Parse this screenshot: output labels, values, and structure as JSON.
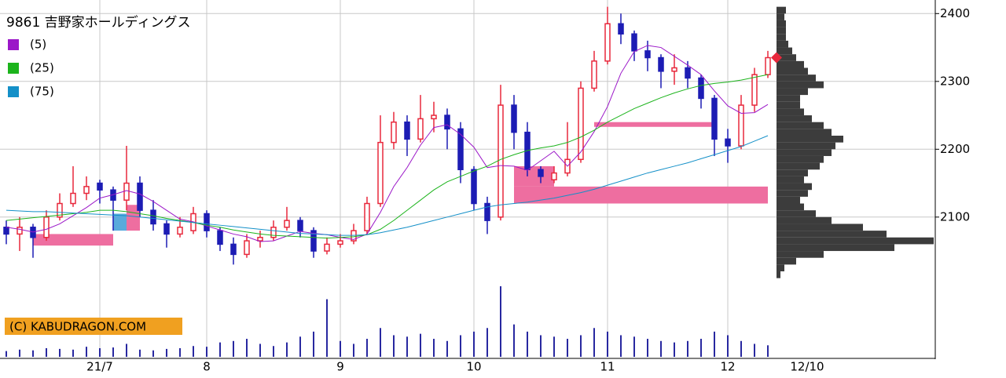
{
  "chart_data": {
    "type": "candlestick",
    "title": "9861 吉野家ホールディングス",
    "watermark": "(C) KABUDRAGON.COM",
    "date_label": "12/10",
    "categories": [
      null,
      null,
      null,
      null,
      null,
      null,
      null,
      "21/7",
      null,
      null,
      null,
      null,
      null,
      null,
      null,
      "8",
      null,
      null,
      null,
      null,
      null,
      null,
      null,
      null,
      null,
      "9",
      null,
      null,
      null,
      null,
      null,
      null,
      null,
      null,
      null,
      "10",
      null,
      null,
      null,
      null,
      null,
      null,
      null,
      null,
      null,
      "11",
      null,
      null,
      null,
      null,
      null,
      null,
      null,
      null,
      "12",
      null,
      null,
      null
    ],
    "open": [
      2085,
      2075,
      2085,
      2070,
      2100,
      2120,
      2135,
      2150,
      2140,
      2125,
      2150,
      2110,
      2090,
      2075,
      2080,
      2105,
      2080,
      2060,
      2045,
      2065,
      2070,
      2085,
      2095,
      2080,
      2050,
      2060,
      2065,
      2080,
      2120,
      2210,
      2240,
      2215,
      2245,
      2250,
      2230,
      2170,
      2120,
      2100,
      2265,
      2225,
      2170,
      2155,
      2165,
      2185,
      2290,
      2330,
      2385,
      2370,
      2345,
      2335,
      2315,
      2320,
      2305,
      2275,
      2215,
      2205,
      2265,
      2310
    ],
    "high": [
      2095,
      2100,
      2090,
      2110,
      2135,
      2175,
      2160,
      2155,
      2145,
      2205,
      2160,
      2125,
      2095,
      2100,
      2115,
      2110,
      2085,
      2070,
      2075,
      2080,
      2095,
      2115,
      2100,
      2085,
      2070,
      2075,
      2090,
      2130,
      2250,
      2255,
      2250,
      2280,
      2270,
      2260,
      2240,
      2175,
      2130,
      2295,
      2280,
      2240,
      2175,
      2175,
      2240,
      2300,
      2345,
      2410,
      2400,
      2375,
      2360,
      2340,
      2340,
      2330,
      2310,
      2280,
      2230,
      2280,
      2320,
      2345
    ],
    "low": [
      2060,
      2050,
      2040,
      2065,
      2095,
      2115,
      2125,
      2120,
      2080,
      2110,
      2100,
      2080,
      2055,
      2070,
      2075,
      2070,
      2050,
      2030,
      2040,
      2055,
      2065,
      2080,
      2070,
      2040,
      2045,
      2055,
      2060,
      2075,
      2115,
      2200,
      2190,
      2210,
      2225,
      2200,
      2150,
      2110,
      2075,
      2095,
      2200,
      2160,
      2150,
      2150,
      2160,
      2180,
      2285,
      2325,
      2355,
      2330,
      2315,
      2290,
      2295,
      2290,
      2260,
      2190,
      2180,
      2200,
      2255,
      2305
    ],
    "close": [
      2075,
      2085,
      2070,
      2100,
      2120,
      2135,
      2145,
      2140,
      2125,
      2150,
      2110,
      2090,
      2075,
      2085,
      2105,
      2080,
      2060,
      2045,
      2065,
      2070,
      2085,
      2095,
      2080,
      2050,
      2060,
      2065,
      2080,
      2120,
      2210,
      2240,
      2215,
      2245,
      2250,
      2230,
      2170,
      2120,
      2095,
      2265,
      2225,
      2170,
      2160,
      2165,
      2185,
      2290,
      2330,
      2385,
      2370,
      2345,
      2335,
      2315,
      2320,
      2305,
      2275,
      2215,
      2205,
      2265,
      2310,
      2335
    ],
    "up_color": "#e8283c",
    "down_color": "#1c1cb4",
    "series": [
      {
        "name": "(5)",
        "color": "#9b17c8",
        "values": [
          2085,
          2082,
          2078,
          2082,
          2090,
          2102,
          2114,
          2128,
          2133,
          2139,
          2134,
          2123,
          2110,
          2097,
          2093,
          2087,
          2081,
          2075,
          2071,
          2064,
          2065,
          2072,
          2079,
          2076,
          2074,
          2070,
          2067,
          2075,
          2107,
          2145,
          2173,
          2206,
          2232,
          2236,
          2222,
          2203,
          2173,
          2176,
          2175,
          2169,
          2183,
          2197,
          2175,
          2196,
          2226,
          2263,
          2312,
          2344,
          2353,
          2350,
          2337,
          2324,
          2310,
          2286,
          2264,
          2253,
          2254,
          2266
        ]
      },
      {
        "name": "(25)",
        "color": "#1cb41c",
        "values": [
          2095,
          2097,
          2099,
          2101,
          2103,
          2105,
          2107,
          2110,
          2110,
          2108,
          2105,
          2102,
          2098,
          2095,
          2092,
          2088,
          2085,
          2081,
          2078,
          2075,
          2073,
          2072,
          2071,
          2070,
          2069,
          2070,
          2071,
          2074,
          2082,
          2095,
          2110,
          2125,
          2140,
          2152,
          2160,
          2168,
          2175,
          2185,
          2192,
          2198,
          2202,
          2205,
          2210,
          2218,
          2228,
          2240,
          2250,
          2260,
          2268,
          2276,
          2283,
          2289,
          2294,
          2297,
          2299,
          2302,
          2306,
          2310
        ]
      },
      {
        "name": "(75)",
        "color": "#1490c8",
        "values": [
          2110,
          2109,
          2108,
          2108,
          2107,
          2106,
          2105,
          2104,
          2103,
          2102,
          2100,
          2098,
          2096,
          2094,
          2092,
          2090,
          2088,
          2086,
          2084,
          2082,
          2080,
          2078,
          2076,
          2075,
          2074,
          2073,
          2073,
          2074,
          2077,
          2081,
          2085,
          2090,
          2095,
          2100,
          2105,
          2110,
          2115,
          2118,
          2120,
          2122,
          2125,
          2128,
          2132,
          2136,
          2141,
          2147,
          2153,
          2159,
          2165,
          2170,
          2175,
          2180,
          2186,
          2192,
          2198,
          2204,
          2212,
          2220
        ]
      }
    ],
    "volume": [
      8,
      10,
      9,
      12,
      11,
      10,
      14,
      12,
      13,
      18,
      10,
      9,
      11,
      12,
      15,
      14,
      20,
      22,
      25,
      18,
      15,
      20,
      28,
      35,
      80,
      22,
      18,
      25,
      40,
      30,
      28,
      32,
      25,
      22,
      30,
      35,
      40,
      98,
      45,
      35,
      30,
      28,
      25,
      30,
      40,
      35,
      30,
      28,
      25,
      22,
      20,
      22,
      25,
      35,
      30,
      22,
      18,
      16
    ],
    "volume_color": "#2828a0",
    "zones": [
      {
        "from": 2,
        "to": 8,
        "low": 2058,
        "high": 2075,
        "color": "#ee6ea0"
      },
      {
        "from": 8,
        "to": 9,
        "low": 2080,
        "high": 2105,
        "color": "#5aaadc"
      },
      {
        "from": 9,
        "to": 10,
        "low": 2080,
        "high": 2118,
        "color": "#ee6ea0"
      },
      {
        "from": 38,
        "to": 57,
        "low": 2120,
        "high": 2145,
        "color": "#ee6ea0"
      },
      {
        "from": 38,
        "to": 41,
        "low": 2145,
        "high": 2175,
        "color": "#ee6ea0"
      },
      {
        "from": 44,
        "to": 53,
        "low": 2233,
        "high": 2240,
        "color": "#ee6ea0"
      }
    ],
    "profile": {
      "color": "#3c3c3c",
      "prices": [
        2015,
        2025,
        2035,
        2045,
        2055,
        2065,
        2075,
        2085,
        2095,
        2105,
        2115,
        2125,
        2135,
        2145,
        2155,
        2165,
        2175,
        2185,
        2195,
        2205,
        2215,
        2225,
        2235,
        2245,
        2255,
        2265,
        2275,
        2285,
        2295,
        2305,
        2315,
        2325,
        2335,
        2345,
        2355,
        2365,
        2375,
        2385,
        2395,
        2405
      ],
      "values": [
        5,
        10,
        25,
        60,
        150,
        200,
        140,
        110,
        70,
        50,
        35,
        30,
        40,
        45,
        35,
        40,
        55,
        60,
        70,
        75,
        85,
        70,
        60,
        45,
        35,
        30,
        30,
        40,
        60,
        50,
        40,
        35,
        25,
        20,
        15,
        12,
        12,
        12,
        10,
        12
      ]
    },
    "marker_color": "#e8283c",
    "ylim": [
      1894,
      2420
    ],
    "yticks": [
      2100,
      2200,
      2300,
      2400
    ],
    "grid": true
  }
}
